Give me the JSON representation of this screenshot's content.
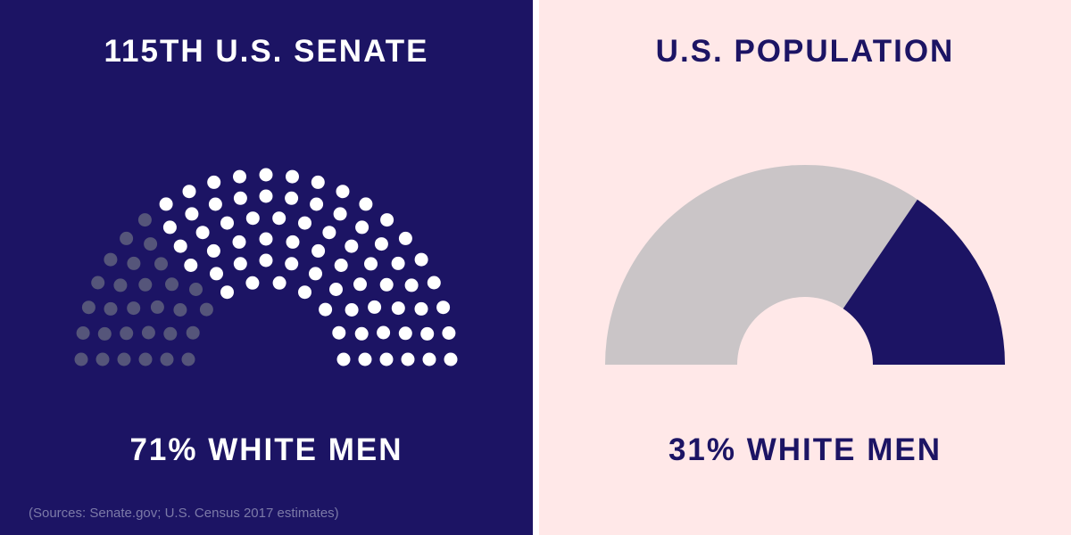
{
  "colors": {
    "left_background": "#1c1464",
    "right_background": "#ffe8e8",
    "white_men_seat": "#ffffff",
    "other_seat": "#55557a",
    "white_men_slice": "#1c1464",
    "other_slice": "#cac5c7"
  },
  "left_panel": {
    "title": "115TH U.S. SENATE",
    "caption": "71% WHITE MEN",
    "sources": "(Sources: Senate.gov; U.S. Census 2017 estimates)"
  },
  "right_panel": {
    "title": "U.S. POPULATION",
    "caption": "31% WHITE MEN"
  },
  "chart_data": [
    {
      "type": "parliament",
      "title": "115TH U.S. SENATE",
      "total_seats": 100,
      "series": [
        {
          "name": "WHITE MEN",
          "value": 71
        },
        {
          "value": 29
        }
      ]
    },
    {
      "type": "pie",
      "title": "U.S. POPULATION",
      "shape": "half-donut",
      "series": [
        {
          "name": "WHITE MEN",
          "value": 31
        },
        {
          "value": 69
        }
      ]
    }
  ]
}
